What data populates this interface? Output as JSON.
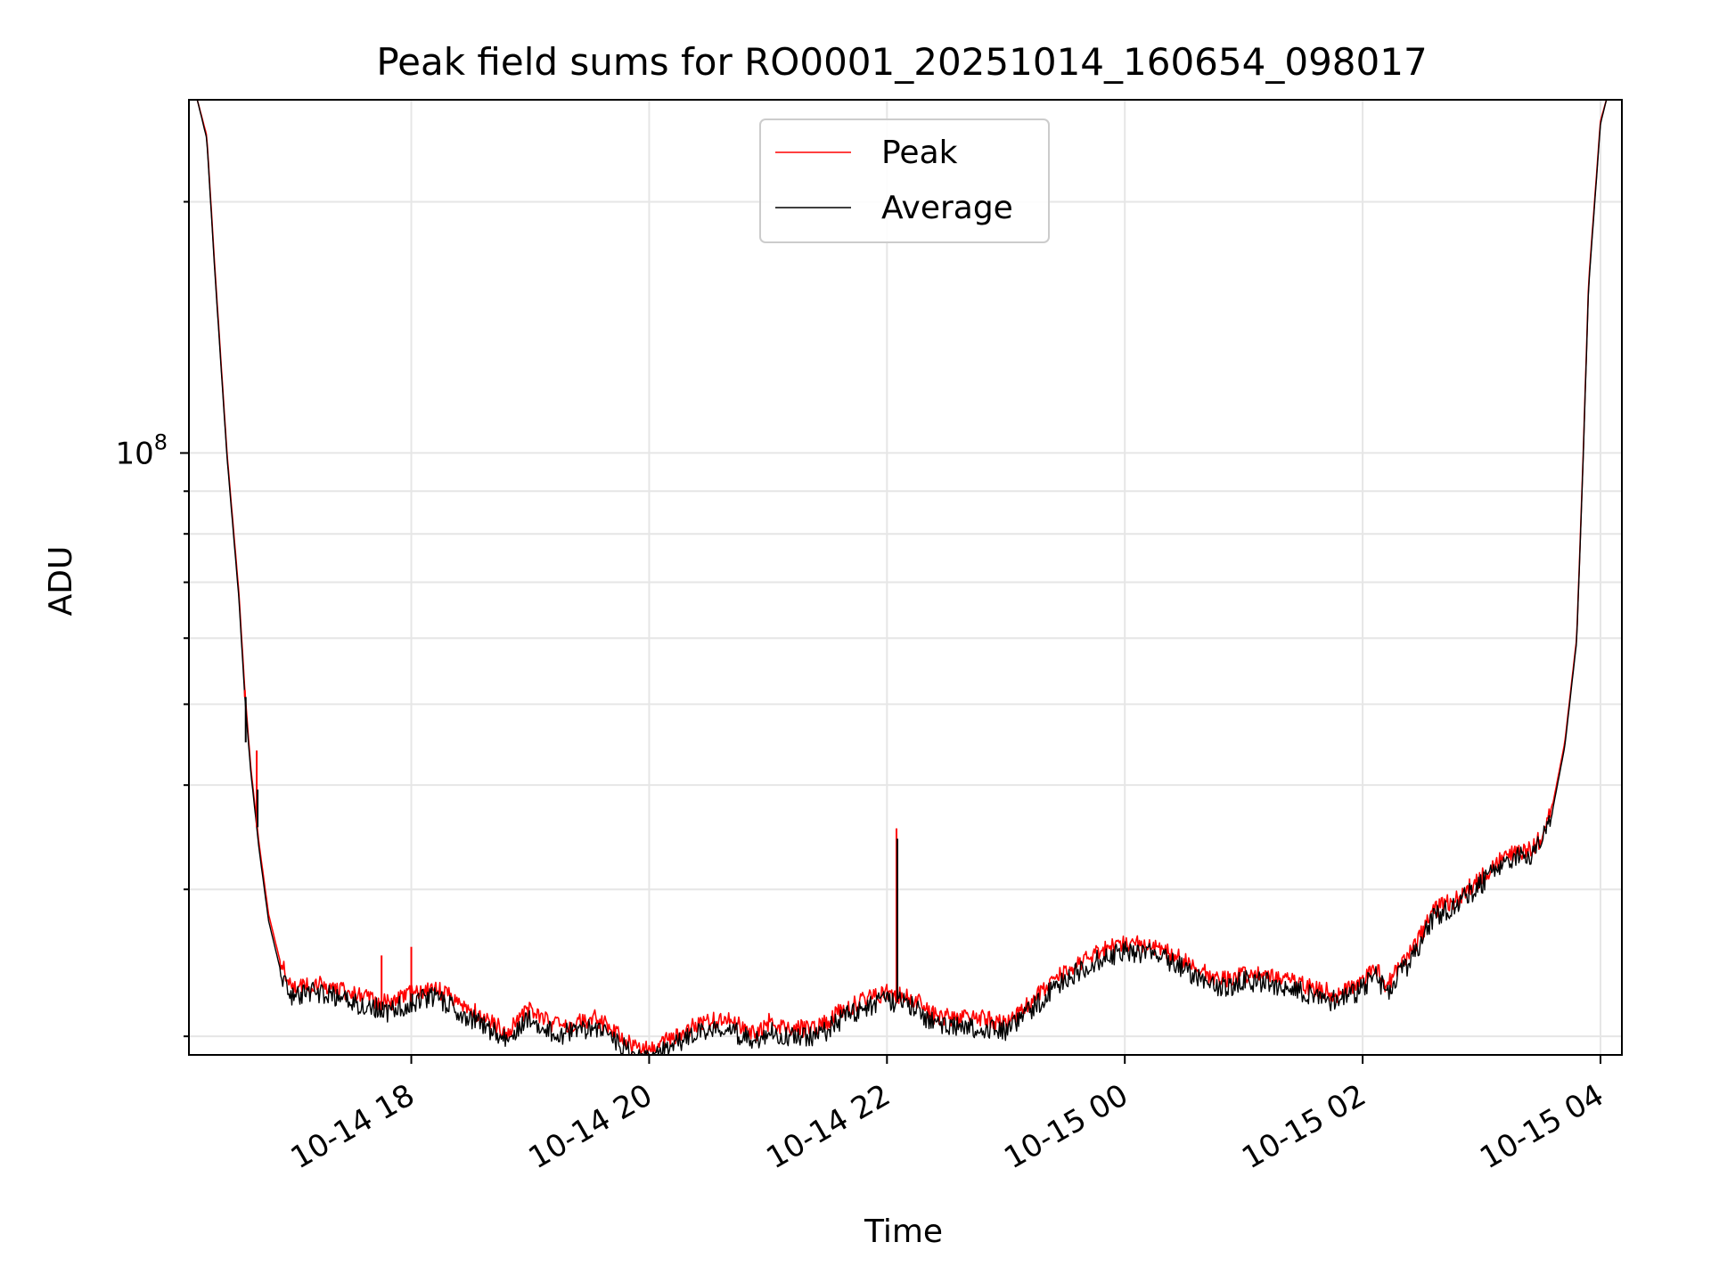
{
  "chart_data": {
    "type": "line",
    "title": "Peak field sums for RO0001_20251014_160654_098017",
    "xlabel": "Time",
    "ylabel": "ADU",
    "yscale": "log",
    "ylim": [
      19000000,
      265000000
    ],
    "xlim_hours": [
      16.13,
      28.18
    ],
    "x_ticks": [
      {
        "hour": 18,
        "label": "10-14 18"
      },
      {
        "hour": 20,
        "label": "10-14 20"
      },
      {
        "hour": 22,
        "label": "10-14 22"
      },
      {
        "hour": 24,
        "label": "10-15 00"
      },
      {
        "hour": 26,
        "label": "10-15 02"
      },
      {
        "hour": 28,
        "label": "10-15 04"
      }
    ],
    "y_major_ticks": [
      {
        "value": 100000000,
        "base": "10",
        "exponent": "8"
      }
    ],
    "y_minor_ticks": [
      20000000,
      30000000,
      40000000,
      50000000,
      60000000,
      70000000,
      80000000,
      90000000,
      200000000
    ],
    "grid": true,
    "legend_position": "top-center",
    "legend_color": "#cccccc",
    "series": [
      {
        "name": "Peak",
        "color": "#ff0000",
        "x_hours": [
          16.2,
          16.28,
          16.35,
          16.45,
          16.55,
          16.6,
          16.65,
          16.72,
          16.8,
          16.9,
          17.0,
          17.2,
          17.4,
          17.6,
          17.8,
          18.0,
          18.2,
          18.4,
          18.6,
          18.8,
          19.0,
          19.2,
          19.4,
          19.55,
          19.7,
          19.85,
          20.0,
          20.05,
          20.2,
          20.4,
          20.6,
          20.8,
          20.9,
          21.0,
          21.2,
          21.4,
          21.6,
          21.8,
          22.0,
          22.2,
          22.4,
          22.6,
          22.8,
          23.0,
          23.2,
          23.4,
          23.6,
          23.8,
          24.0,
          24.2,
          24.4,
          24.6,
          24.8,
          25.0,
          25.2,
          25.4,
          25.6,
          25.8,
          26.0,
          26.1,
          26.2,
          26.4,
          26.6,
          26.8,
          27.0,
          27.2,
          27.4,
          27.5,
          27.6,
          27.7,
          27.8,
          27.85,
          27.9,
          28.0,
          28.05
        ],
        "values": [
          265000000,
          240000000,
          165000000,
          100000000,
          68000000,
          52000000,
          42000000,
          34000000,
          28000000,
          24500000,
          22800000,
          23100000,
          22700000,
          22300000,
          21900000,
          22500000,
          22800000,
          22000000,
          21100000,
          20300000,
          21600000,
          20600000,
          20800000,
          21000000,
          20400000,
          19500000,
          19200000,
          19400000,
          20000000,
          20600000,
          21000000,
          20500000,
          20200000,
          20800000,
          20500000,
          20400000,
          21400000,
          22100000,
          22600000,
          22300000,
          21200000,
          21000000,
          21000000,
          20800000,
          21900000,
          23300000,
          24400000,
          25300000,
          25800000,
          25700000,
          25100000,
          24100000,
          23300000,
          23800000,
          23700000,
          23400000,
          22800000,
          22500000,
          23300000,
          24400000,
          23000000,
          25100000,
          28300000,
          29300000,
          31000000,
          33000000,
          33500000,
          34500000,
          38000000,
          45000000,
          60000000,
          95000000,
          160000000,
          250000000,
          265000000
        ]
      },
      {
        "name": "Average",
        "color": "#000000",
        "x_hours": [
          16.2,
          16.28,
          16.35,
          16.45,
          16.55,
          16.6,
          16.65,
          16.72,
          16.8,
          16.9,
          17.0,
          17.2,
          17.4,
          17.6,
          17.8,
          18.0,
          18.2,
          18.4,
          18.6,
          18.8,
          19.0,
          19.2,
          19.4,
          19.55,
          19.7,
          19.85,
          20.0,
          20.05,
          20.2,
          20.4,
          20.6,
          20.8,
          20.9,
          21.0,
          21.2,
          21.4,
          21.6,
          21.8,
          22.0,
          22.2,
          22.4,
          22.6,
          22.8,
          23.0,
          23.2,
          23.4,
          23.6,
          23.8,
          24.0,
          24.2,
          24.4,
          24.6,
          24.8,
          25.0,
          25.2,
          25.4,
          25.6,
          25.8,
          26.0,
          26.1,
          26.2,
          26.4,
          26.6,
          26.8,
          27.0,
          27.2,
          27.4,
          27.5,
          27.6,
          27.7,
          27.8,
          27.85,
          27.9,
          28.0,
          28.05
        ],
        "values": [
          265000000,
          238000000,
          163000000,
          99000000,
          67000000,
          51000000,
          41500000,
          33500000,
          27500000,
          24000000,
          22300000,
          22600000,
          22200000,
          21800000,
          21400000,
          22000000,
          22300000,
          21500000,
          20600000,
          19800000,
          21100000,
          20100000,
          20300000,
          20500000,
          19900000,
          19000000,
          18700000,
          18900000,
          19500000,
          20100000,
          20500000,
          20000000,
          19700000,
          20300000,
          20000000,
          19900000,
          20900000,
          21600000,
          22100000,
          21800000,
          20700000,
          20500000,
          20500000,
          20300000,
          21400000,
          22800000,
          23900000,
          24800000,
          25300000,
          25200000,
          24600000,
          23600000,
          22800000,
          23300000,
          23200000,
          22900000,
          22300000,
          22000000,
          22800000,
          23900000,
          22500000,
          24600000,
          27800000,
          28800000,
          30500000,
          32500000,
          33000000,
          34000000,
          37500000,
          44500000,
          59500000,
          94000000,
          158000000,
          248000000,
          265000000
        ]
      }
    ],
    "spikes": [
      {
        "hour": 16.6,
        "peak": 52000000,
        "average": 45000000
      },
      {
        "hour": 16.7,
        "peak": 44000000,
        "average": 39500000
      },
      {
        "hour": 22.08,
        "peak": 35500000,
        "average": 34500000
      },
      {
        "hour": 18.0,
        "peak": 25600000,
        "average": 22500000
      },
      {
        "hour": 17.75,
        "peak": 25000000,
        "average": 22000000
      }
    ]
  }
}
